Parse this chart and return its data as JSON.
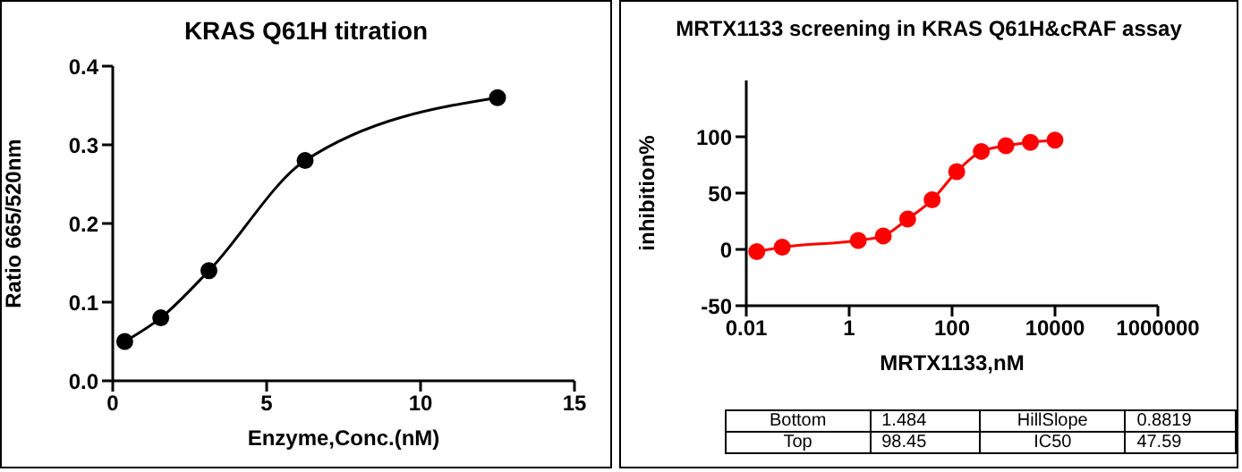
{
  "chart_data": [
    {
      "type": "line",
      "title": "KRAS Q61H titration",
      "xlabel": "Enzyme,Conc.(nM)",
      "ylabel": "Ratio 665/520nm",
      "x": [
        0.39,
        1.56,
        3.125,
        6.25,
        12.5
      ],
      "series": [
        {
          "color": "#000000",
          "values": [
            0.05,
            0.08,
            0.14,
            0.28,
            0.36
          ]
        }
      ],
      "xlim": [
        0,
        15
      ],
      "xticks": [
        0,
        5,
        10,
        15
      ],
      "ylim": [
        0,
        0.4
      ],
      "yticks": [
        {
          "value": 0,
          "label": "0.0"
        },
        0.1,
        0.2,
        0.3,
        0.4
      ],
      "marker": "circle",
      "grid": false,
      "legend": false
    },
    {
      "type": "line",
      "title": "MRTX1133 screening in KRAS Q61H&cRAF assay",
      "xlabel": "MRTX1133,nM",
      "ylabel": "inhibition%",
      "x": [
        0.016,
        0.05,
        1.5,
        4.6,
        13.7,
        41,
        123,
        370,
        1111,
        3333,
        10000
      ],
      "series": [
        {
          "color": "#ff0000",
          "values": [
            -2,
            2,
            8,
            12,
            27,
            44,
            69,
            87,
            92,
            95,
            97
          ]
        }
      ],
      "xlim": [
        0.01,
        1000000
      ],
      "xticks": [
        0.01,
        1,
        100,
        10000,
        1000000
      ],
      "ylim": [
        -50,
        150
      ],
      "yticks": [
        -50,
        0,
        50,
        100
      ],
      "log": "x",
      "marker": "circle",
      "grid": false,
      "legend": false,
      "annotations": [
        "Bottom",
        "1.484",
        "HillSlope",
        "0.8819",
        "Top",
        "98.45",
        "IC50",
        "47.59"
      ]
    }
  ]
}
